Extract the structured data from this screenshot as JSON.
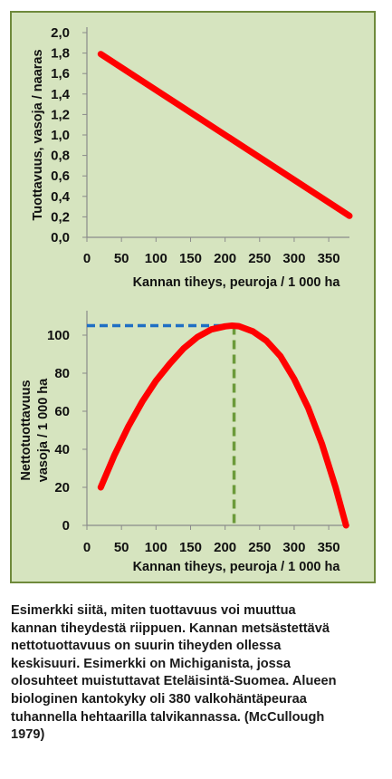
{
  "chart_data": [
    {
      "type": "line",
      "xlabel": "Kannan tiheys, peuroja / 1 000 ha",
      "ylabel": "Tuottavuus, vasoja / naaras",
      "xlim": [
        0,
        380
      ],
      "ylim": [
        0.0,
        2.0
      ],
      "x_ticks": [
        "0",
        "50",
        "100",
        "150",
        "200",
        "250",
        "300",
        "350"
      ],
      "y_ticks": [
        "0,0",
        "0,2",
        "0,4",
        "0,6",
        "0,8",
        "1,0",
        "1,2",
        "1,4",
        "1,6",
        "1,8",
        "2,0"
      ],
      "grid": false,
      "color": "#ff0000",
      "series": [
        {
          "x": [
            20,
            380
          ],
          "y": [
            1.79,
            0.21
          ]
        }
      ]
    },
    {
      "type": "line",
      "xlabel": "Kannan tiheys, peuroja / 1 000 ha",
      "ylabel_lines": [
        "Nettotuottavuus",
        "vasoja / 1 000 ha"
      ],
      "xlim": [
        0,
        380
      ],
      "ylim": [
        0,
        110
      ],
      "x_ticks": [
        "0",
        "50",
        "100",
        "150",
        "200",
        "250",
        "300",
        "350"
      ],
      "y_ticks": [
        "0",
        "20",
        "40",
        "60",
        "80",
        "100"
      ],
      "grid": false,
      "color": "#ff0000",
      "series": [
        {
          "x": [
            20,
            40,
            60,
            80,
            100,
            120,
            140,
            160,
            180,
            200,
            210,
            220,
            240,
            260,
            280,
            300,
            320,
            340,
            360,
            375
          ],
          "y": [
            20,
            37,
            52,
            65,
            76,
            85,
            93,
            99,
            103,
            104.6,
            105,
            104.7,
            102,
            97,
            89,
            77,
            62,
            43,
            20,
            0
          ]
        }
      ],
      "annotations": [
        {
          "kind": "hline",
          "y": 105,
          "x_from": 0,
          "x_to": 205,
          "color": "#1f6fc4"
        },
        {
          "kind": "vline",
          "x": 213,
          "y_from": 0,
          "y_to": 105,
          "color": "#6c9a3a"
        }
      ]
    }
  ],
  "caption": [
    "Esimerkki siitä, miten tuottavuus voi muuttua",
    "kannan tiheydestä riippuen. Kannan metsästettävä",
    "nettotuottavuus on suurin tiheyden ollessa",
    "keskisuuri. Esimerkki on Michiganista, jossa",
    "olosuhteet muistuttavat Eteläisintä-Suomea. Alueen",
    "biologinen kantokyky oli 380 valkohäntäpeuraa",
    "tuhannella hehtaarilla talvikannassa. (McCullough",
    "1979)"
  ]
}
